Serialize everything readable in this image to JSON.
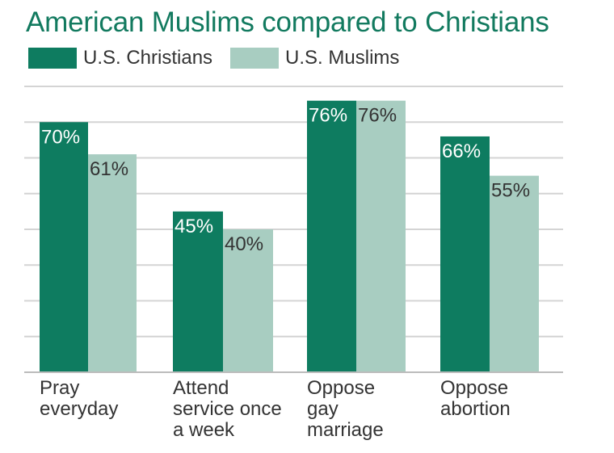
{
  "title": "American Muslims compared to Christians",
  "colors": {
    "christians": "#0e7c60",
    "muslims": "#a8cdc1",
    "grid": "#d4d4d4",
    "title": "#127a5f"
  },
  "legend": [
    {
      "label": "U.S. Christians",
      "color": "#0e7c60"
    },
    {
      "label": "U.S. Muslims",
      "color": "#a8cdc1"
    }
  ],
  "chart_data": {
    "type": "bar",
    "title": "American Muslims compared to Christians",
    "xlabel": "",
    "ylabel": "",
    "ylim": [
      0,
      80
    ],
    "grid": true,
    "legend_position": "top-left",
    "categories": [
      [
        "Pray",
        "everyday"
      ],
      [
        "Attend",
        "service once",
        "a week"
      ],
      [
        "Oppose",
        "gay",
        "marriage"
      ],
      [
        "Oppose",
        "abortion"
      ]
    ],
    "series": [
      {
        "name": "U.S. Christians",
        "values": [
          70,
          45,
          76,
          66
        ],
        "labels": [
          "70%",
          "45%",
          "76%",
          "66%"
        ]
      },
      {
        "name": "U.S. Muslims",
        "values": [
          61,
          40,
          76,
          55
        ],
        "labels": [
          "61%",
          "40%",
          "76%",
          "55%"
        ]
      }
    ]
  }
}
